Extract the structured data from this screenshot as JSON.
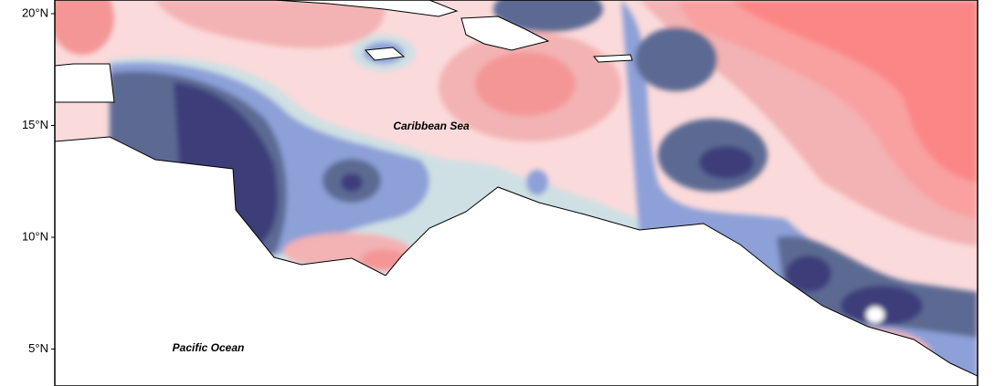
{
  "map": {
    "yticks": [
      {
        "value": 20,
        "label": "20°N"
      },
      {
        "value": 15,
        "label": "15°N"
      },
      {
        "value": 10,
        "label": "10°N"
      },
      {
        "value": 5,
        "label": "5°N"
      }
    ],
    "labels": [
      "Caribbean Sea",
      "Pacific Ocean"
    ]
  }
}
